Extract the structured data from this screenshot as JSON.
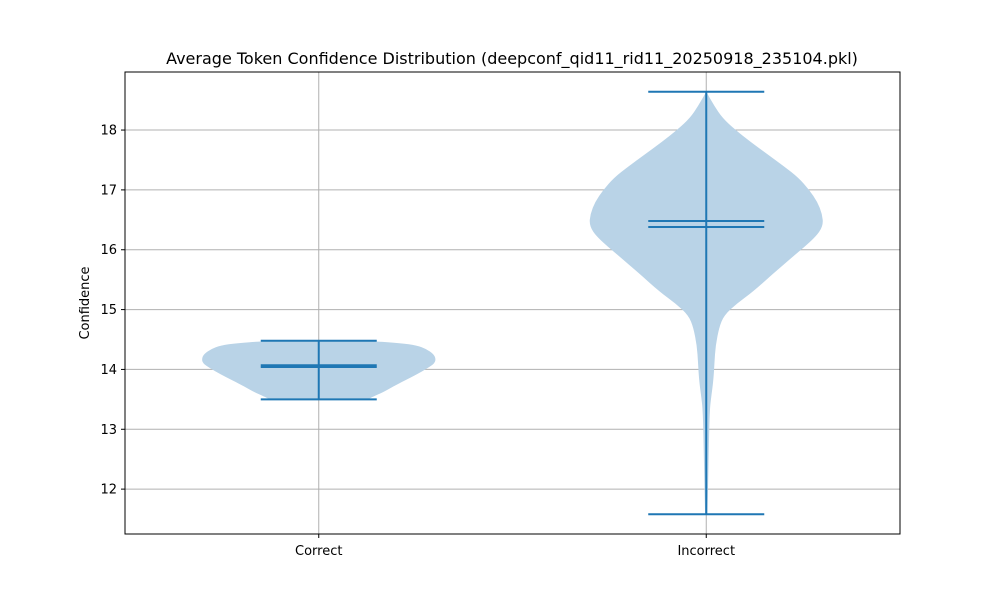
{
  "chart_data": {
    "type": "violin",
    "title": "Average Token Confidence Distribution (deepconf_qid11_rid11_20250918_235104.pkl)",
    "xlabel": "",
    "ylabel": "Confidence",
    "ylim": [
      11.25,
      18.97
    ],
    "yticks": [
      12,
      13,
      14,
      15,
      16,
      17,
      18
    ],
    "grid": true,
    "colors": {
      "body": "#b9d3e7",
      "line": "#1f77b4",
      "grid": "#b0b0b0"
    },
    "categories": [
      "Correct",
      "Incorrect"
    ],
    "series": [
      {
        "category": "Correct",
        "min": 13.5,
        "max": 14.48,
        "mean": 14.07,
        "median": 14.04,
        "density_profile": [
          [
            13.5,
            0.42
          ],
          [
            13.55,
            0.47
          ],
          [
            13.62,
            0.55
          ],
          [
            13.72,
            0.64
          ],
          [
            13.82,
            0.74
          ],
          [
            13.92,
            0.84
          ],
          [
            14.02,
            0.93
          ],
          [
            14.1,
            0.99
          ],
          [
            14.18,
            1.0
          ],
          [
            14.26,
            0.98
          ],
          [
            14.34,
            0.92
          ],
          [
            14.4,
            0.84
          ],
          [
            14.44,
            0.7
          ],
          [
            14.47,
            0.48
          ],
          [
            14.48,
            0.3
          ]
        ]
      },
      {
        "category": "Incorrect",
        "min": 11.58,
        "max": 18.64,
        "mean": 16.48,
        "median": 16.38,
        "density_profile": [
          [
            11.58,
            0.01
          ],
          [
            12.0,
            0.015
          ],
          [
            12.5,
            0.02
          ],
          [
            13.0,
            0.025
          ],
          [
            13.3,
            0.03
          ],
          [
            13.5,
            0.04
          ],
          [
            13.8,
            0.06
          ],
          [
            14.1,
            0.07
          ],
          [
            14.4,
            0.08
          ],
          [
            14.7,
            0.11
          ],
          [
            14.9,
            0.15
          ],
          [
            15.1,
            0.26
          ],
          [
            15.3,
            0.4
          ],
          [
            15.6,
            0.57
          ],
          [
            15.9,
            0.75
          ],
          [
            16.2,
            0.93
          ],
          [
            16.4,
            1.0
          ],
          [
            16.6,
            0.99
          ],
          [
            16.8,
            0.95
          ],
          [
            17.0,
            0.88
          ],
          [
            17.2,
            0.79
          ],
          [
            17.4,
            0.66
          ],
          [
            17.6,
            0.52
          ],
          [
            17.8,
            0.38
          ],
          [
            18.0,
            0.25
          ],
          [
            18.2,
            0.14
          ],
          [
            18.4,
            0.07
          ],
          [
            18.64,
            0.0
          ]
        ]
      }
    ]
  }
}
